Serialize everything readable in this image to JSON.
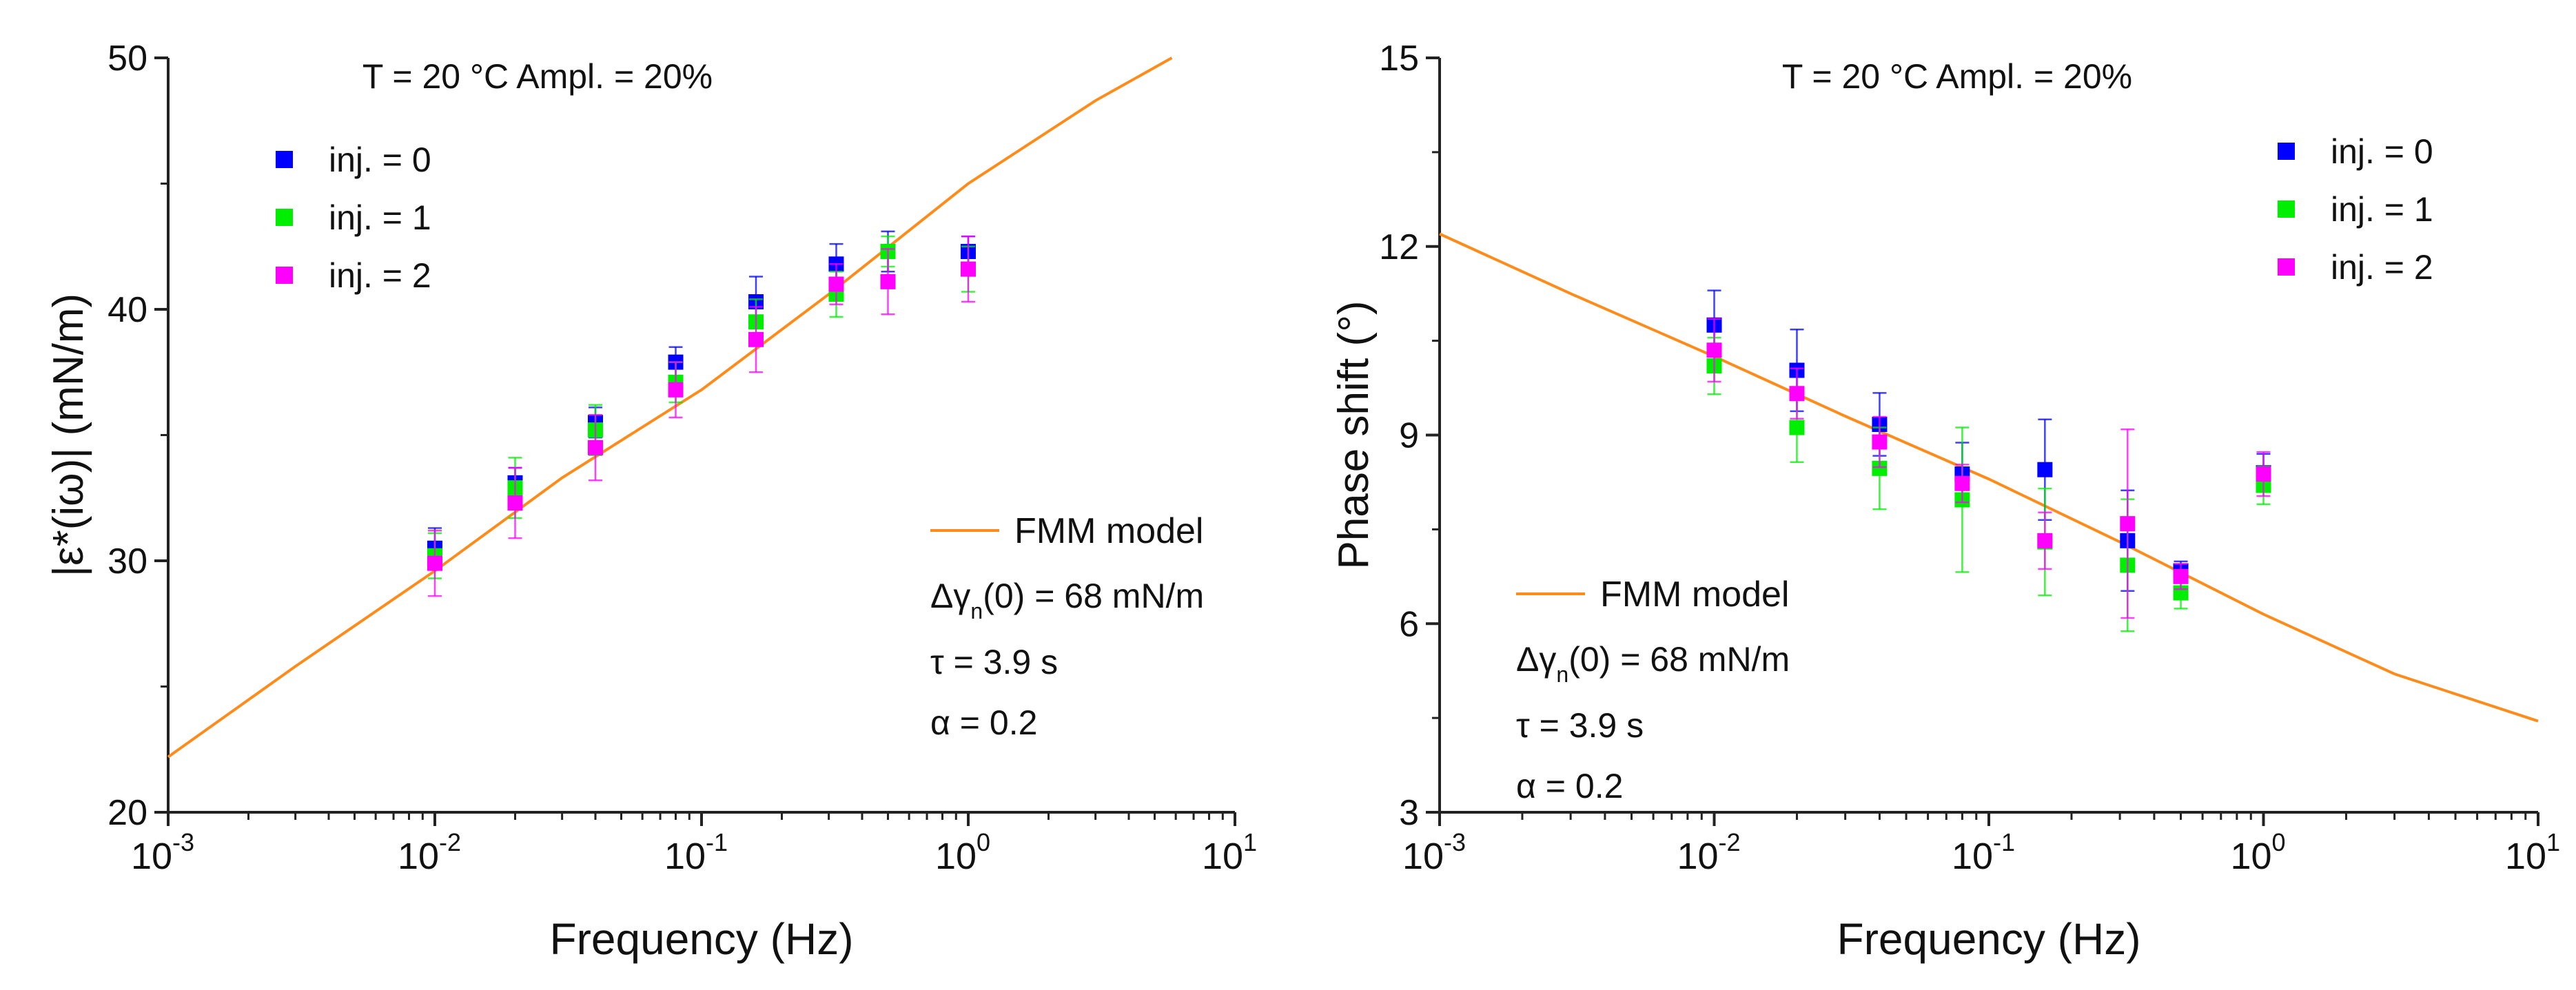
{
  "colors": {
    "inj0": "#0000ff",
    "inj1": "#00ee00",
    "inj2": "#ff00ff",
    "model": "#ff8c1a",
    "axis": "#222222"
  },
  "chart_data": [
    {
      "type": "scatter",
      "title": "T = 20 °C  Ampl. = 20%",
      "xlabel": "Frequency (Hz)",
      "ylabel": "|ε*(iω)| (mN/m)",
      "xscale": "log",
      "xlim": [
        0.001,
        10
      ],
      "ylim": [
        20,
        50
      ],
      "xticks": [
        "10^-3",
        "10^-2",
        "10^-1",
        "10^0",
        "10^1"
      ],
      "yticks": [
        "20",
        "30",
        "40",
        "50"
      ],
      "legend_position": "top-left",
      "x": [
        0.01,
        0.02,
        0.04,
        0.08,
        0.16,
        0.32,
        0.5,
        1.0
      ],
      "series": [
        {
          "name": "inj. = 0",
          "color_key": "inj0",
          "values": [
            30.5,
            33.1,
            35.5,
            37.9,
            40.3,
            41.8,
            42.3,
            42.3
          ],
          "err": [
            0.8,
            0.6,
            0.6,
            0.6,
            1.0,
            0.8,
            0.8,
            0.6
          ]
        },
        {
          "name": "inj. = 1",
          "color_key": "inj1",
          "values": [
            30.2,
            32.9,
            35.2,
            37.1,
            39.5,
            40.6,
            42.3,
            41.6
          ],
          "err": [
            0.9,
            1.2,
            1.0,
            0.8,
            0.9,
            0.9,
            0.6,
            0.9
          ]
        },
        {
          "name": "inj. = 2",
          "color_key": "inj2",
          "values": [
            29.9,
            32.3,
            34.5,
            36.8,
            38.8,
            41.0,
            41.1,
            41.6
          ],
          "err": [
            1.3,
            1.4,
            1.3,
            1.1,
            1.3,
            0.8,
            1.3,
            1.3
          ]
        }
      ],
      "model": {
        "name": "FMM model",
        "x": [
          0.001,
          0.003,
          0.01,
          0.03,
          0.1,
          0.3,
          1,
          3,
          5.8
        ],
        "y": [
          22.2,
          25.8,
          29.6,
          33.3,
          36.8,
          40.6,
          45.0,
          48.3,
          50.0
        ]
      },
      "params": [
        "Δγ",
        "n",
        "(0) = 68 mN/m",
        "τ = 3.9 s",
        "α = 0.2"
      ],
      "legend_box_position": "bottom-right"
    },
    {
      "type": "scatter",
      "title": "T = 20 °C  Ampl. = 20%",
      "xlabel": "Frequency (Hz)",
      "ylabel": "Phase shift (°)",
      "xscale": "log",
      "xlim": [
        0.001,
        10
      ],
      "ylim": [
        3,
        15
      ],
      "xticks": [
        "10^-3",
        "10^-2",
        "10^-1",
        "10^0",
        "10^1"
      ],
      "yticks": [
        "3",
        "6",
        "9",
        "12",
        "15"
      ],
      "legend_position": "top-right",
      "x": [
        0.01,
        0.02,
        0.04,
        0.08,
        0.16,
        0.32,
        0.5,
        1.0
      ],
      "series": [
        {
          "name": "inj. = 0",
          "color_key": "inj0",
          "values": [
            10.75,
            10.03,
            9.17,
            8.38,
            8.45,
            7.32,
            6.84,
            8.4
          ],
          "err": [
            0.55,
            0.65,
            0.5,
            0.5,
            0.8,
            0.8,
            0.15,
            0.3
          ]
        },
        {
          "name": "inj. = 1",
          "color_key": "inj1",
          "values": [
            10.1,
            9.12,
            8.47,
            7.97,
            7.3,
            6.93,
            6.49,
            8.2
          ],
          "err": [
            0.45,
            0.55,
            0.65,
            1.15,
            0.85,
            1.05,
            0.25,
            0.3
          ]
        },
        {
          "name": "inj. = 2",
          "color_key": "inj2",
          "values": [
            10.35,
            9.66,
            8.89,
            8.23,
            7.32,
            7.59,
            6.75,
            8.38
          ],
          "err": [
            0.5,
            0.4,
            0.4,
            0.3,
            0.45,
            1.5,
            0.2,
            0.35
          ]
        }
      ],
      "model": {
        "name": "FMM model",
        "x": [
          0.001,
          0.003,
          0.01,
          0.03,
          0.1,
          0.3,
          1,
          3,
          10
        ],
        "y": [
          12.2,
          11.25,
          10.25,
          9.3,
          8.3,
          7.3,
          6.15,
          5.2,
          4.45
        ]
      },
      "params": [
        "Δγ",
        "n",
        "(0) = 68 mN/m",
        "τ = 3.9 s",
        "α = 0.2"
      ],
      "legend_box_position": "bottom-left"
    }
  ]
}
